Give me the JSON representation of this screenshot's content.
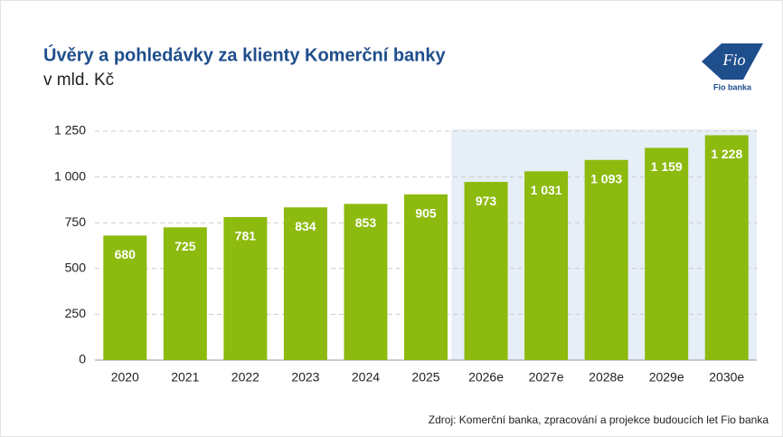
{
  "chart_data": {
    "type": "bar",
    "title": "Úvěry a pohledávky za klienty Komerční banky",
    "subtitle": "v mld. Kč",
    "source": "Zdroj: Komerční banka, zpracování a projekce budoucích let Fio banka",
    "logo": {
      "mark": "Fio",
      "name": "Fio banka"
    },
    "categories": [
      "2020",
      "2021",
      "2022",
      "2023",
      "2024",
      "2025",
      "2026e",
      "2027e",
      "2028e",
      "2029e",
      "2030e"
    ],
    "values": [
      680,
      725,
      781,
      834,
      853,
      905,
      973,
      1031,
      1093,
      1159,
      1228
    ],
    "value_labels": [
      "680",
      "725",
      "781",
      "834",
      "853",
      "905",
      "973",
      "1 031",
      "1 093",
      "1 159",
      "1 228"
    ],
    "color": "#8cba0e",
    "highlight": {
      "from": "2026e",
      "to": "2030e",
      "color": "#e6eef8"
    },
    "ylim": [
      0,
      1250
    ],
    "yticks": [
      0,
      250,
      500,
      750,
      {
        "value": 1000,
        "label": "1 000"
      },
      {
        "value": 1250,
        "label": "1 250"
      }
    ],
    "grid": true
  }
}
